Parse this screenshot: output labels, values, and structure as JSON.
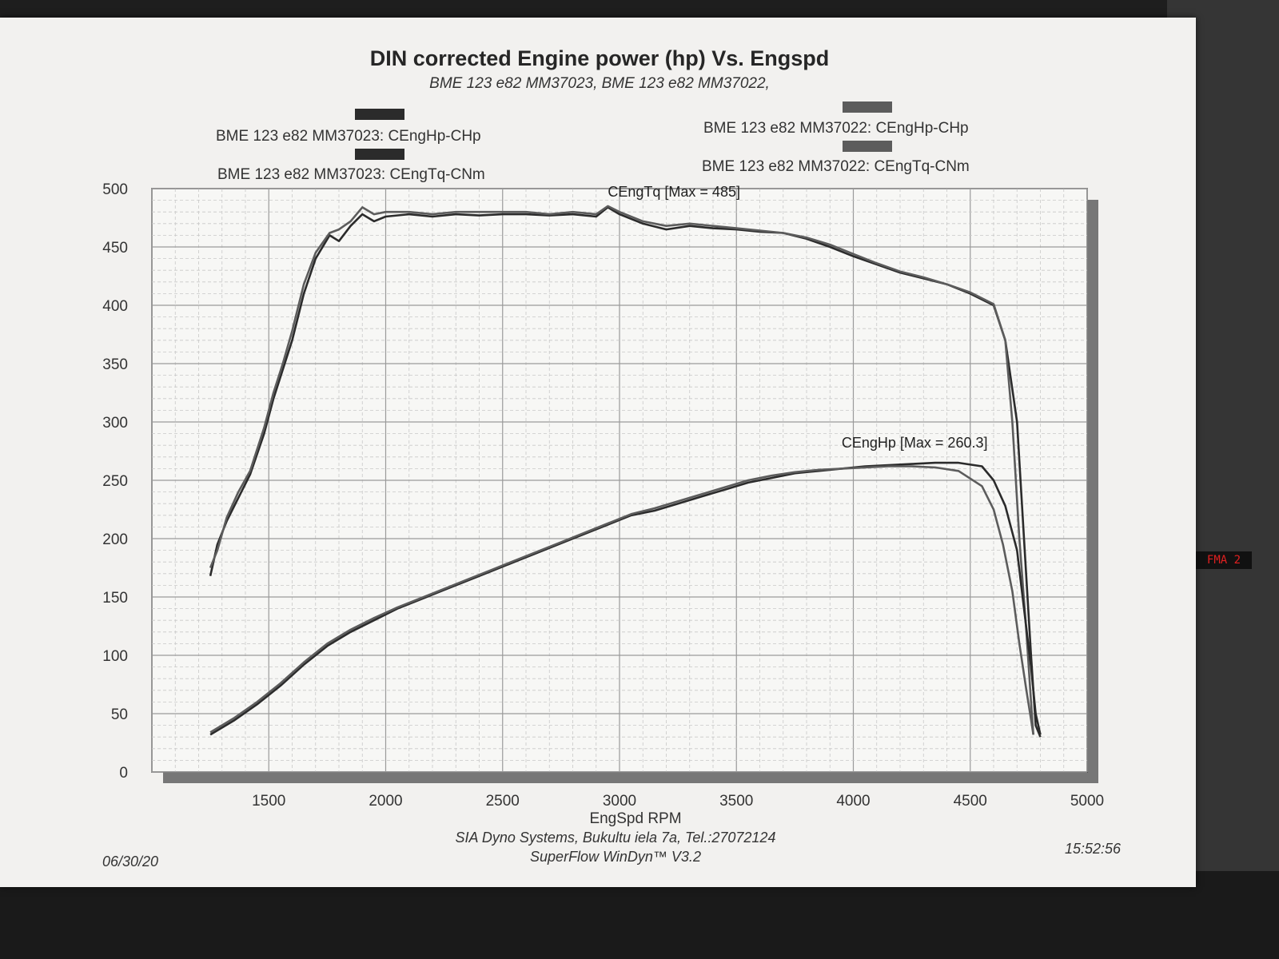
{
  "header": {
    "title": "DIN corrected Engine power (hp) Vs. Engspd",
    "subtitle": "BME 123  e82 MM37023, BME 123  e82 MM37022,"
  },
  "legend": {
    "items": [
      {
        "label": "BME 123  e82 MM37023: CEngHp-CHp",
        "color": "#2b2b2b"
      },
      {
        "label": "BME 123  e82 MM37023: CEngTq-CNm",
        "color": "#2b2b2b"
      },
      {
        "label": "BME 123  e82 MM37022: CEngHp-CHp",
        "color": "#5c5c5c"
      },
      {
        "label": "BME 123  e82 MM37022: CEngTq-CNm",
        "color": "#5c5c5c"
      }
    ]
  },
  "footer": {
    "company": "SIA Dyno Systems, Bukultu iela 7a, Tel.:27072124",
    "software": "SuperFlow WinDyn™ V3.2",
    "date": "06/30/20",
    "time": "15:52:56"
  },
  "dashboard": {
    "mode_display": "FMA  2"
  },
  "chart_data": {
    "type": "line",
    "title": "DIN corrected Engine power (hp) Vs. Engspd",
    "xlabel": "EngSpd RPM",
    "ylabel": "",
    "xlim": [
      1000,
      5000
    ],
    "ylim": [
      0,
      500
    ],
    "xticks": [
      "1500",
      "2000",
      "2500",
      "3000",
      "3500",
      "4000",
      "4500",
      "5000"
    ],
    "yticks": [
      "0",
      "50",
      "100",
      "150",
      "200",
      "250",
      "300",
      "350",
      "400",
      "450",
      "500"
    ],
    "grid": true,
    "legend_position": "top",
    "annotations": [
      {
        "text": "CEngTq [Max = 485]",
        "x": 2950,
        "y": 493
      },
      {
        "text": "CEngHp [Max = 260.3]",
        "x": 3950,
        "y": 278
      }
    ],
    "series": [
      {
        "name": "BME 123  e82 MM37023: CEngTq-CNm",
        "color": "#2b2b2b",
        "x": [
          1250,
          1280,
          1320,
          1370,
          1420,
          1480,
          1520,
          1560,
          1600,
          1650,
          1700,
          1760,
          1800,
          1850,
          1900,
          1950,
          2000,
          2100,
          2200,
          2300,
          2400,
          2500,
          2600,
          2700,
          2800,
          2900,
          2950,
          3000,
          3100,
          3200,
          3300,
          3400,
          3500,
          3600,
          3700,
          3800,
          3900,
          4000,
          4100,
          4200,
          4300,
          4400,
          4500,
          4600,
          4650,
          4700,
          4730,
          4760,
          4780,
          4800
        ],
        "y": [
          168,
          195,
          215,
          235,
          255,
          290,
          320,
          345,
          370,
          410,
          440,
          460,
          455,
          468,
          478,
          472,
          476,
          478,
          476,
          478,
          477,
          478,
          478,
          477,
          478,
          476,
          484,
          478,
          470,
          465,
          468,
          466,
          465,
          463,
          462,
          457,
          450,
          442,
          435,
          428,
          423,
          418,
          410,
          400,
          370,
          300,
          200,
          100,
          40,
          30
        ]
      },
      {
        "name": "BME 123  e82 MM37022: CEngTq-CNm",
        "color": "#5c5c5c",
        "x": [
          1250,
          1280,
          1320,
          1370,
          1420,
          1480,
          1520,
          1560,
          1600,
          1650,
          1700,
          1760,
          1800,
          1850,
          1900,
          1950,
          2000,
          2100,
          2200,
          2300,
          2400,
          2500,
          2600,
          2700,
          2800,
          2900,
          2950,
          3000,
          3100,
          3200,
          3300,
          3400,
          3500,
          3600,
          3700,
          3800,
          3900,
          4000,
          4100,
          4200,
          4300,
          4400,
          4500,
          4600,
          4650,
          4680,
          4710,
          4740,
          4760,
          4770
        ],
        "y": [
          175,
          190,
          218,
          240,
          258,
          295,
          325,
          350,
          378,
          418,
          445,
          462,
          465,
          472,
          484,
          478,
          480,
          480,
          478,
          480,
          480,
          480,
          480,
          478,
          480,
          478,
          485,
          480,
          472,
          468,
          470,
          468,
          466,
          464,
          462,
          458,
          452,
          444,
          436,
          429,
          424,
          418,
          411,
          401,
          370,
          300,
          200,
          120,
          60,
          32
        ]
      },
      {
        "name": "BME 123  e82 MM37023: CEngHp-CHp",
        "color": "#2b2b2b",
        "x": [
          1250,
          1350,
          1450,
          1550,
          1650,
          1750,
          1850,
          1950,
          2050,
          2150,
          2250,
          2350,
          2450,
          2550,
          2650,
          2750,
          2850,
          2950,
          3050,
          3150,
          3250,
          3350,
          3450,
          3550,
          3650,
          3750,
          3850,
          3950,
          4050,
          4150,
          4250,
          4350,
          4450,
          4550,
          4600,
          4650,
          4700,
          4730,
          4760,
          4780,
          4800
        ],
        "y": [
          32,
          44,
          58,
          74,
          92,
          108,
          120,
          130,
          140,
          148,
          156,
          164,
          172,
          180,
          188,
          196,
          204,
          212,
          220,
          224,
          230,
          236,
          242,
          248,
          252,
          256,
          258,
          260,
          262,
          263,
          264,
          265,
          265,
          262,
          250,
          228,
          190,
          140,
          90,
          50,
          32
        ]
      },
      {
        "name": "BME 123  e82 MM37022: CEngHp-CHp",
        "color": "#5c5c5c",
        "x": [
          1250,
          1350,
          1450,
          1550,
          1650,
          1750,
          1850,
          1950,
          2050,
          2150,
          2250,
          2350,
          2450,
          2550,
          2650,
          2750,
          2850,
          2950,
          3050,
          3150,
          3250,
          3350,
          3450,
          3550,
          3650,
          3750,
          3850,
          3950,
          4050,
          4150,
          4250,
          4350,
          4450,
          4550,
          4600,
          4640,
          4680,
          4710,
          4740,
          4760,
          4770
        ],
        "y": [
          34,
          46,
          60,
          76,
          94,
          110,
          122,
          132,
          141,
          149,
          157,
          165,
          173,
          181,
          189,
          197,
          205,
          213,
          221,
          226,
          232,
          238,
          244,
          250,
          254,
          257,
          259,
          260,
          261,
          262,
          262,
          261,
          258,
          245,
          225,
          195,
          155,
          110,
          70,
          45,
          32
        ]
      }
    ]
  }
}
